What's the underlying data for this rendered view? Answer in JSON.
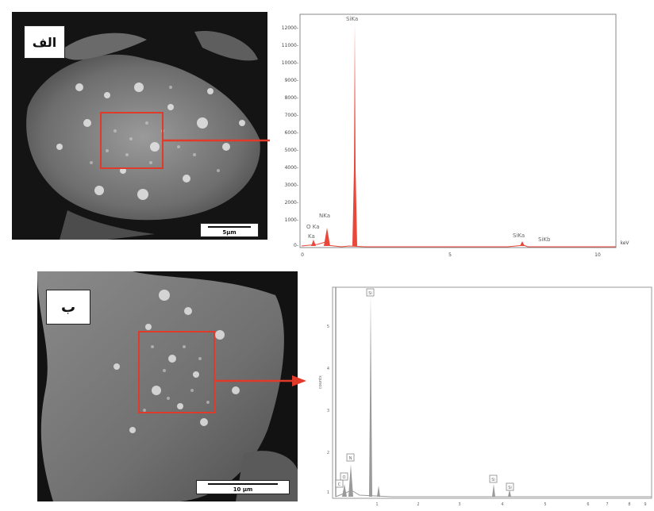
{
  "panels": {
    "a": {
      "label": "الف",
      "scale_label": "5µm",
      "spectrum": {
        "peak_labels": [
          "SiKa",
          "NKa",
          "O Ka",
          "Ka",
          "SiKa",
          "SiKb"
        ],
        "y_ticks": [
          "12000-",
          "11000-",
          "10000-",
          "9000-",
          "8000-",
          "7000-",
          "6000-",
          "5000-",
          "4000-",
          "3000-",
          "2000-",
          "1000-",
          "0-"
        ],
        "x_ticks": [
          "0",
          "5",
          "10"
        ],
        "x_unit": "keV"
      }
    },
    "b": {
      "label": "ب",
      "scale_label": "10 µm",
      "spectrum": {
        "peak_labels": [
          "Si",
          "N",
          "O",
          "C",
          "Si",
          "Si"
        ],
        "y_ticks": [
          "5",
          "4",
          "3",
          "2",
          "1"
        ],
        "y_axis_label": "counts",
        "x_ticks": [
          "1",
          "2",
          "3",
          "4",
          "5",
          "6",
          "7",
          "8",
          "9"
        ]
      }
    }
  },
  "colors": {
    "highlight": "#e03a2a",
    "spectrum_a_line": "#e8473a",
    "spectrum_b_line": "#9a9a9a",
    "sem_background": "#111111"
  }
}
